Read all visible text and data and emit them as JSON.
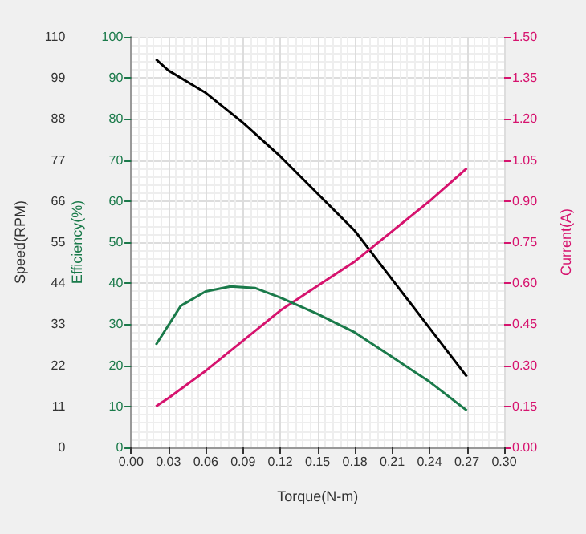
{
  "chart_data": {
    "type": "line",
    "xlabel": "Torque(N-m)",
    "ylabel": "Speed(RPM)",
    "y2label": "Current(A)",
    "y3label": "Efficiency(%)",
    "xlim": [
      0,
      0.3
    ],
    "xticks": [
      {
        "value": 0,
        "label": "0.00"
      },
      {
        "value": 0.03,
        "label": "0.03"
      },
      {
        "value": 0.06,
        "label": "0.06"
      },
      {
        "value": 0.09,
        "label": "0.09"
      },
      {
        "value": 0.12,
        "label": "0.12"
      },
      {
        "value": 0.15,
        "label": "0.15"
      },
      {
        "value": 0.18,
        "label": "0.18"
      },
      {
        "value": 0.21,
        "label": "0.21"
      },
      {
        "value": 0.24,
        "label": "0.24"
      },
      {
        "value": 0.27,
        "label": "0.27"
      },
      {
        "value": 0.3,
        "label": "0.30"
      }
    ],
    "ylim": [
      0,
      110
    ],
    "yticks": [
      0,
      11,
      22,
      33,
      44,
      55,
      66,
      77,
      88,
      99,
      110
    ],
    "y2lim": [
      0,
      1.5
    ],
    "y2ticks": [
      {
        "value": 0,
        "label": "0.00"
      },
      {
        "value": 0.15,
        "label": "0.15"
      },
      {
        "value": 0.3,
        "label": "0.30"
      },
      {
        "value": 0.45,
        "label": "0.45"
      },
      {
        "value": 0.6,
        "label": "0.60"
      },
      {
        "value": 0.75,
        "label": "0.75"
      },
      {
        "value": 0.9,
        "label": "0.90"
      },
      {
        "value": 1.05,
        "label": "1.05"
      },
      {
        "value": 1.2,
        "label": "1.20"
      },
      {
        "value": 1.35,
        "label": "1.35"
      },
      {
        "value": 1.5,
        "label": "1.50"
      }
    ],
    "y3lim": [
      0,
      100
    ],
    "y3ticks": [
      0,
      10,
      20,
      30,
      40,
      50,
      60,
      70,
      80,
      90,
      100
    ],
    "grid": true,
    "marker": "none",
    "line_style": "solid",
    "x": [
      0.02,
      0.03,
      0.06,
      0.09,
      0.12,
      0.15,
      0.18,
      0.21,
      0.24,
      0.27
    ],
    "series": [
      {
        "color": "#000000",
        "values": [
          104,
          101,
          95,
          87,
          78,
          68,
          58,
          45,
          32,
          19
        ]
      },
      {
        "color": "#d6136e",
        "axis": "y2",
        "values": [
          0.15,
          0.18,
          0.28,
          0.39,
          0.5,
          0.59,
          0.68,
          0.79,
          0.9,
          1.02
        ]
      },
      {
        "color": "#1a7a4a",
        "axis": "y3",
        "x": [
          0.02,
          0.04,
          0.06,
          0.08,
          0.1,
          0.12,
          0.15,
          0.18,
          0.21,
          0.24,
          0.27
        ],
        "values": [
          25,
          34.5,
          38,
          39.2,
          38.8,
          36.5,
          32.5,
          28,
          22,
          16,
          9
        ]
      }
    ]
  }
}
